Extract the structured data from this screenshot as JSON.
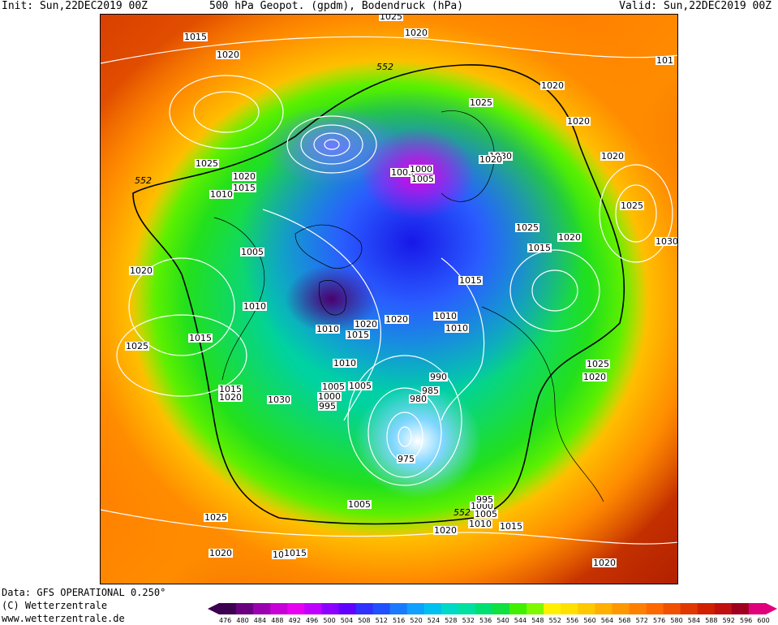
{
  "header": {
    "init": "Init: Sun,22DEC2019 00Z",
    "title": "500 hPa Geopot. (gpdm), Bodendruck (hPa)",
    "valid": "Valid: Sun,22DEC2019 00Z"
  },
  "footer": {
    "data_source": "Data: GFS OPERATIONAL 0.250°",
    "copyright": "(C) Wetterzentrale",
    "url": "www.wetterzentrale.de"
  },
  "pressure_labels": [
    "1015",
    "1020",
    "1025",
    "1020",
    "1010",
    "1015",
    "1020",
    "1005",
    "1010",
    "1015",
    "1025",
    "1015",
    "1020",
    "1030",
    "1005",
    "1000",
    "995",
    "1010",
    "1005",
    "1010",
    "1015",
    "1020",
    "1010",
    "1015",
    "990",
    "985",
    "980",
    "975",
    "1005",
    "1000",
    "995",
    "1005",
    "1010",
    "1015",
    "1020",
    "1015",
    "1020",
    "1025",
    "1020",
    "1025",
    "1030",
    "1020",
    "1025",
    "1015",
    "1030",
    "1025",
    "1020",
    "1000",
    "1005",
    "1020",
    "1020",
    "1020",
    "1025",
    "1020",
    "1025",
    "1020",
    "101",
    "1020",
    "1015",
    "1010",
    "1005"
  ],
  "height_labels": [
    "552",
    "552",
    "552"
  ],
  "colorbar": {
    "values": [
      "476",
      "480",
      "484",
      "488",
      "492",
      "496",
      "500",
      "504",
      "508",
      "512",
      "516",
      "520",
      "524",
      "528",
      "532",
      "536",
      "540",
      "544",
      "548",
      "552",
      "556",
      "560",
      "564",
      "568",
      "572",
      "576",
      "580",
      "584",
      "588",
      "592",
      "596",
      "600"
    ],
    "colors": [
      "#3c0050",
      "#6a0080",
      "#9a00b0",
      "#c800d8",
      "#e800f0",
      "#c000ff",
      "#8c00ff",
      "#6000ff",
      "#3030ff",
      "#2050ff",
      "#1a7aff",
      "#10a0ff",
      "#00c0f0",
      "#00d8c8",
      "#00e0a0",
      "#00e070",
      "#10e040",
      "#40f000",
      "#80f800",
      "#fff000",
      "#ffe000",
      "#ffc800",
      "#ffb000",
      "#ff9800",
      "#ff8000",
      "#ff6800",
      "#f05000",
      "#e03800",
      "#d02000",
      "#c01010",
      "#a00020",
      "#e0007c"
    ]
  }
}
